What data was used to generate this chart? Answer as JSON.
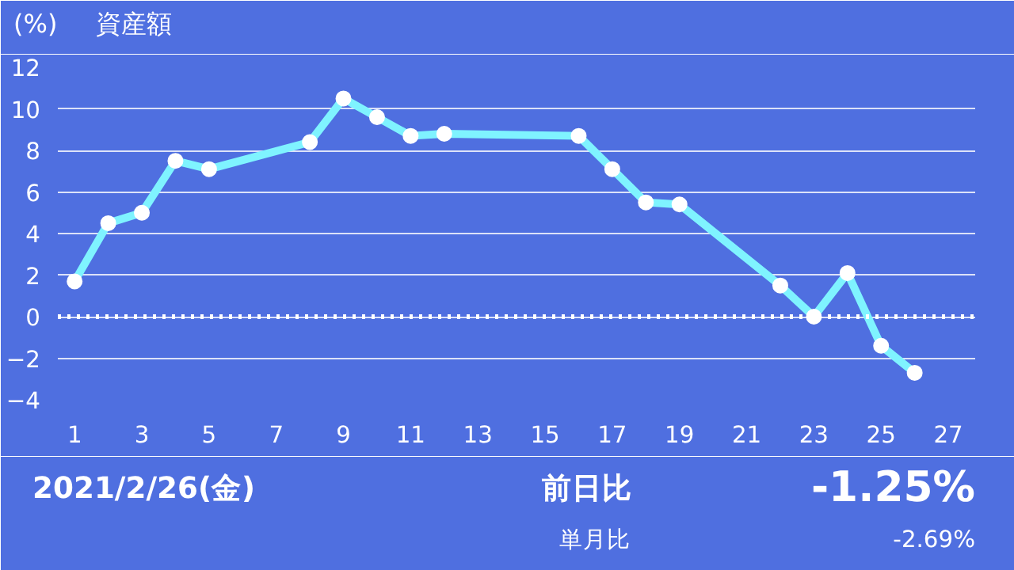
{
  "chart_data": {
    "type": "line",
    "title": "資産額",
    "ylabel": "(%)",
    "x": [
      1,
      2,
      3,
      4,
      5,
      8,
      9,
      10,
      11,
      12,
      16,
      17,
      18,
      19,
      22,
      23,
      24,
      25,
      26
    ],
    "series": [
      {
        "color": "#7ff3ff",
        "values": [
          1.7,
          4.5,
          5.0,
          7.5,
          7.1,
          8.4,
          10.5,
          9.6,
          8.7,
          8.8,
          8.7,
          7.1,
          5.5,
          5.4,
          1.5,
          0.0,
          2.1,
          -1.4,
          -2.7
        ]
      }
    ],
    "xlim": [
      0.5,
      27.8
    ],
    "xticks": [
      1,
      3,
      5,
      7,
      9,
      11,
      13,
      15,
      17,
      19,
      21,
      23,
      25,
      27
    ],
    "ylim": [
      -4,
      12
    ],
    "yticks": [
      -4,
      -2,
      0,
      2,
      4,
      6,
      8,
      10,
      12
    ],
    "grid": "y",
    "marker": "circle",
    "line_style": "solid",
    "ref_lines": [
      {
        "axis": "y",
        "value": 0,
        "color": "#ffffff",
        "line_style": "dotted"
      }
    ],
    "annotations": [
      "2021/2/26(金)",
      "前日比",
      "-1.25%",
      "単月比",
      "-2.69%"
    ]
  }
}
